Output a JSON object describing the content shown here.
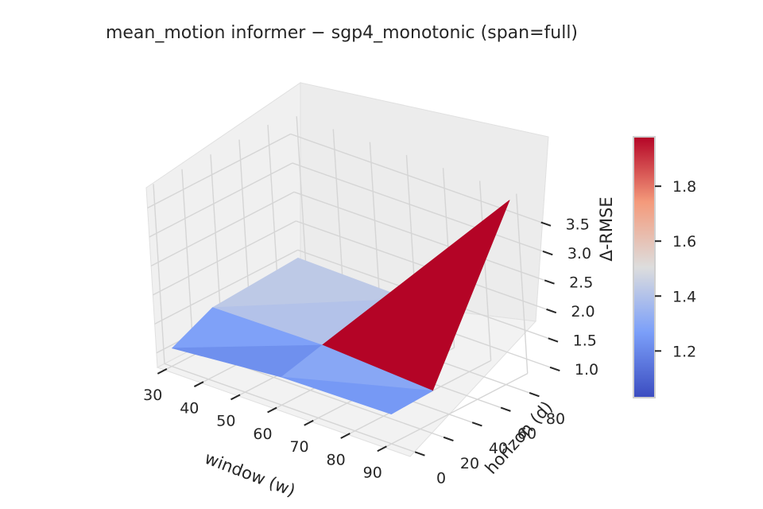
{
  "chart_data": {
    "type": "surface",
    "title": "mean_motion  informer − sgp4_monotonic  (span=full)",
    "xlabel": "window (w)",
    "ylabel": "horizon (d)",
    "zlabel": "Δ-RMSE",
    "x_ticks": [
      "30",
      "40",
      "50",
      "60",
      "70",
      "80",
      "90"
    ],
    "y_ticks": [
      "0",
      "20",
      "40",
      "60",
      "80"
    ],
    "z_ticks": [
      "1.0",
      "1.5",
      "2.0",
      "2.5",
      "3.0",
      "3.5"
    ],
    "colorbar_ticks": [
      "1.2",
      "1.4",
      "1.6",
      "1.8"
    ],
    "colormap": "coolwarm",
    "colorbar_range": [
      1.03,
      1.98
    ],
    "xlim": [
      28,
      97
    ],
    "ylim": [
      -5,
      95
    ],
    "zlim": [
      0.75,
      3.85
    ],
    "windows": [
      30,
      60,
      90
    ],
    "horizons": [
      1,
      30,
      90
    ],
    "z_values": [
      [
        1.05,
        1.38,
        1.47
      ],
      [
        1.22,
        1.4,
        1.43
      ],
      [
        1.25,
        1.28,
        3.8
      ]
    ],
    "colors": {
      "cold": "#3b4cc0",
      "neutral": "#dddddd",
      "hot": "#b40426"
    }
  }
}
